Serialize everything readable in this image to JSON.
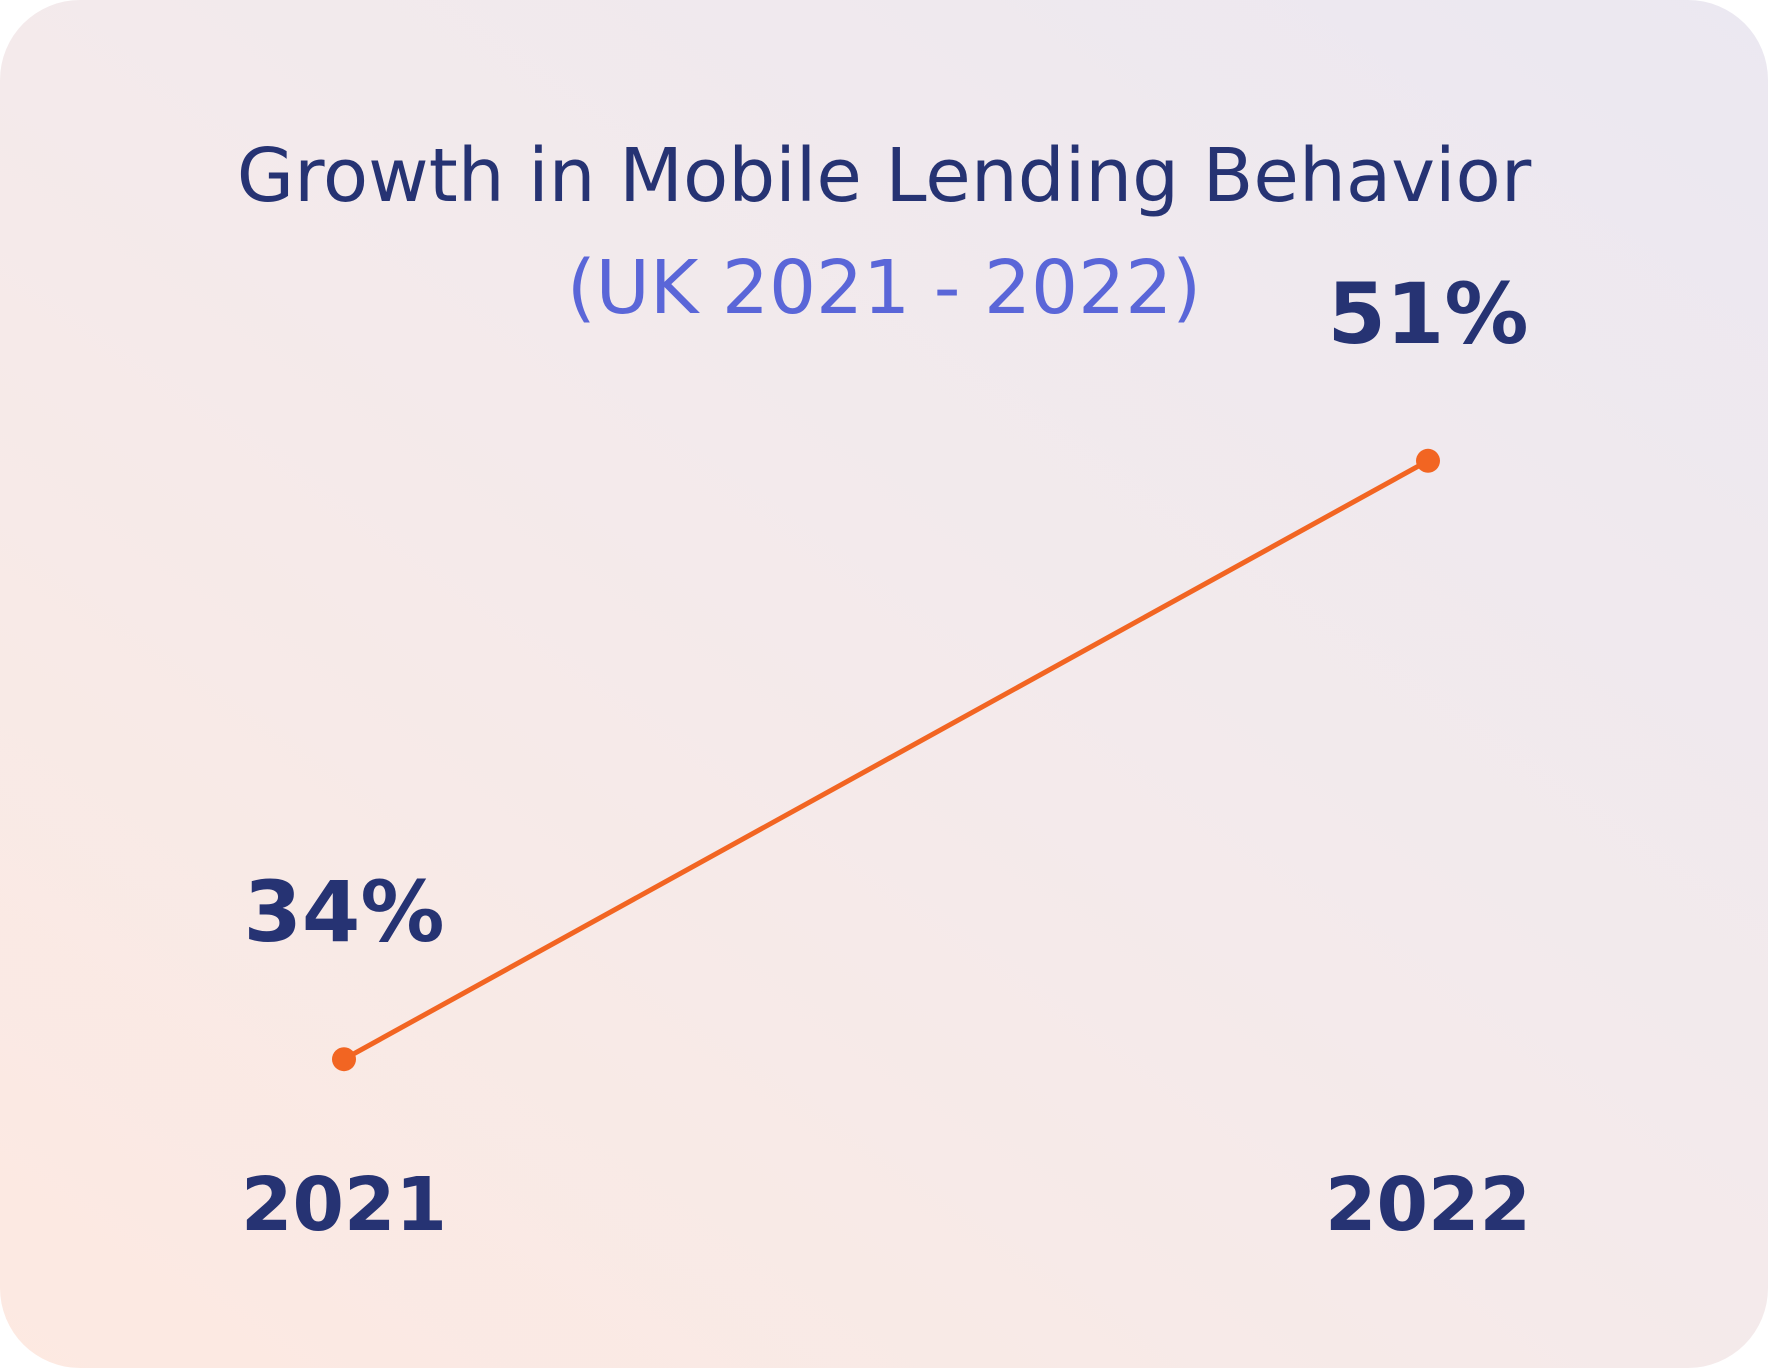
{
  "chart_data": {
    "type": "line",
    "title": "Growth in Mobile Lending Behavior",
    "subtitle": "(UK 2021 - 2022)",
    "x": [
      "2021",
      "2022"
    ],
    "values": [
      34,
      51
    ],
    "data_labels": [
      "34%",
      "51%"
    ],
    "ylim": [
      30,
      55
    ],
    "xlabel": "",
    "ylabel": "",
    "grid": false,
    "legend": "none"
  },
  "colors": {
    "line": "#f26522",
    "text": "#263373",
    "subtitle": "#5a66d8"
  }
}
